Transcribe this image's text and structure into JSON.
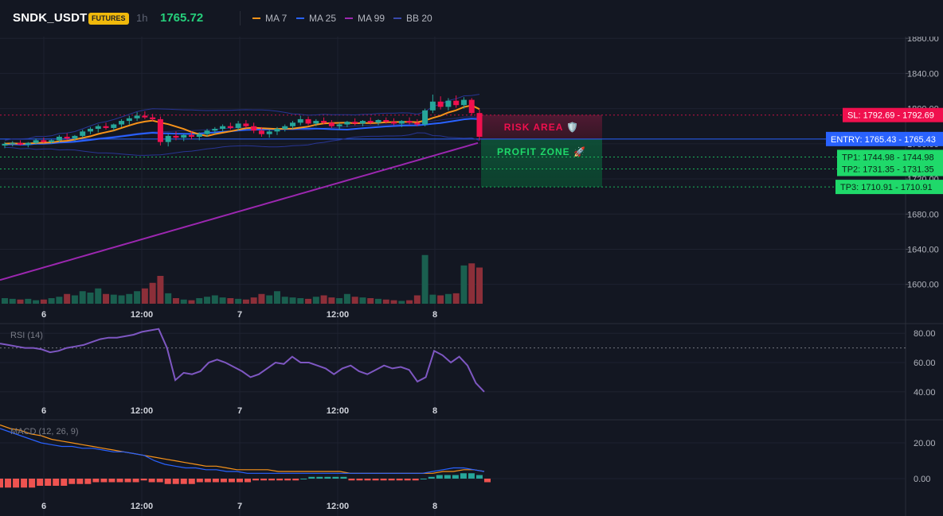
{
  "header": {
    "symbol": "SNDK_USDT",
    "badge": "FUTURES",
    "timeframe": "1h",
    "last_price": "1765.72",
    "legend": [
      {
        "label": "MA 7",
        "color": "#f7931a"
      },
      {
        "label": "MA 25",
        "color": "#2962ff"
      },
      {
        "label": "MA 99",
        "color": "#9c27b0"
      },
      {
        "label": "BB 20",
        "color": "#283593"
      }
    ]
  },
  "price_axis": {
    "ticks": [
      "1880.00",
      "1840.00",
      "1800.00",
      "1760.00",
      "1720.00",
      "1680.00",
      "1640.00",
      "1600.00"
    ]
  },
  "levels": {
    "sl": {
      "label": "SL: 1792.69",
      "value": "1792.69",
      "price": 1792.69,
      "color": "#f0104e"
    },
    "entry": {
      "label": "ENTRY: 1765.43",
      "value": "1765.43",
      "price": 1765.43,
      "color": "#2962ff"
    },
    "tp1": {
      "label": "TP1: 1744.98",
      "value": "1744.98",
      "price": 1744.98,
      "color": "#1fd96a"
    },
    "tp2": {
      "label": "TP2: 1731.35",
      "value": "1731.35",
      "price": 1731.35,
      "color": "#1fd96a"
    },
    "tp3": {
      "label": "TP3: 1710.91",
      "value": "1710.91",
      "price": 1710.91,
      "color": "#1fd96a"
    }
  },
  "zones": {
    "risk_label": "RISK AREA 🛡️",
    "profit_label": "PROFIT ZONE 🚀"
  },
  "time_axis": [
    "6",
    "12:00",
    "7",
    "12:00",
    "8"
  ],
  "rsi": {
    "title": "RSI (14)",
    "ticks": [
      "80.00",
      "60.00",
      "40.00"
    ],
    "overbought": 70
  },
  "macd": {
    "title": "MACD (12, 26, 9)",
    "ticks": [
      "20.00",
      "0.00"
    ]
  },
  "chart_data": {
    "type": "line",
    "title": "",
    "price_ylim": [
      1578,
      1882
    ],
    "candles": [
      [
        1758,
        1762,
        1755,
        1760
      ],
      [
        1760,
        1763,
        1757,
        1761
      ],
      [
        1761,
        1764,
        1758,
        1759
      ],
      [
        1759,
        1762,
        1756,
        1761
      ],
      [
        1761,
        1766,
        1759,
        1764
      ],
      [
        1764,
        1767,
        1761,
        1762
      ],
      [
        1762,
        1765,
        1760,
        1764
      ],
      [
        1764,
        1770,
        1762,
        1768
      ],
      [
        1768,
        1772,
        1764,
        1766
      ],
      [
        1766,
        1770,
        1763,
        1769
      ],
      [
        1769,
        1776,
        1767,
        1774
      ],
      [
        1774,
        1779,
        1771,
        1777
      ],
      [
        1777,
        1782,
        1773,
        1780
      ],
      [
        1780,
        1784,
        1776,
        1778
      ],
      [
        1778,
        1783,
        1775,
        1782
      ],
      [
        1782,
        1788,
        1779,
        1786
      ],
      [
        1786,
        1792,
        1782,
        1789
      ],
      [
        1789,
        1796,
        1786,
        1792
      ],
      [
        1792,
        1797,
        1788,
        1790
      ],
      [
        1790,
        1794,
        1786,
        1788
      ],
      [
        1788,
        1791,
        1758,
        1762
      ],
      [
        1762,
        1771,
        1757,
        1769
      ],
      [
        1769,
        1774,
        1764,
        1767
      ],
      [
        1767,
        1771,
        1763,
        1770
      ],
      [
        1770,
        1774,
        1765,
        1768
      ],
      [
        1768,
        1773,
        1764,
        1771
      ],
      [
        1771,
        1777,
        1768,
        1775
      ],
      [
        1775,
        1779,
        1771,
        1777
      ],
      [
        1777,
        1782,
        1774,
        1780
      ],
      [
        1780,
        1784,
        1776,
        1778
      ],
      [
        1778,
        1786,
        1775,
        1783
      ],
      [
        1783,
        1787,
        1778,
        1780
      ],
      [
        1780,
        1784,
        1772,
        1775
      ],
      [
        1775,
        1779,
        1768,
        1771
      ],
      [
        1771,
        1776,
        1767,
        1774
      ],
      [
        1774,
        1779,
        1770,
        1777
      ],
      [
        1777,
        1782,
        1774,
        1780
      ],
      [
        1780,
        1786,
        1777,
        1784
      ],
      [
        1784,
        1792,
        1781,
        1788
      ],
      [
        1788,
        1791,
        1781,
        1783
      ],
      [
        1783,
        1788,
        1780,
        1786
      ],
      [
        1786,
        1790,
        1782,
        1784
      ],
      [
        1784,
        1787,
        1778,
        1780
      ],
      [
        1780,
        1784,
        1776,
        1782
      ],
      [
        1782,
        1786,
        1779,
        1785
      ],
      [
        1785,
        1789,
        1781,
        1783
      ],
      [
        1783,
        1787,
        1780,
        1786
      ],
      [
        1786,
        1790,
        1782,
        1784
      ],
      [
        1784,
        1788,
        1781,
        1787
      ],
      [
        1787,
        1790,
        1783,
        1785
      ],
      [
        1785,
        1789,
        1781,
        1783
      ],
      [
        1783,
        1787,
        1779,
        1786
      ],
      [
        1786,
        1790,
        1782,
        1784
      ],
      [
        1784,
        1788,
        1780,
        1782
      ],
      [
        1782,
        1800,
        1780,
        1798
      ],
      [
        1798,
        1816,
        1795,
        1808
      ],
      [
        1808,
        1814,
        1799,
        1802
      ],
      [
        1802,
        1812,
        1798,
        1809
      ],
      [
        1809,
        1815,
        1801,
        1804
      ],
      [
        1804,
        1813,
        1800,
        1810
      ],
      [
        1810,
        1812,
        1792,
        1795
      ],
      [
        1795,
        1799,
        1764,
        1768
      ]
    ],
    "volume": [
      8,
      7,
      6,
      7,
      5,
      6,
      8,
      10,
      14,
      12,
      18,
      16,
      22,
      14,
      13,
      12,
      14,
      18,
      22,
      30,
      40,
      15,
      8,
      6,
      5,
      8,
      10,
      12,
      9,
      8,
      7,
      6,
      9,
      14,
      12,
      18,
      10,
      9,
      8,
      7,
      10,
      12,
      9,
      8,
      14,
      10,
      9,
      8,
      7,
      6,
      5,
      4,
      5,
      12,
      70,
      13,
      12,
      14,
      15,
      55,
      58,
      52
    ],
    "rsi_values": [
      73,
      72,
      71,
      70,
      70,
      69,
      67,
      68,
      70,
      71,
      72,
      74,
      76,
      77,
      77,
      78,
      79,
      81,
      82,
      83,
      70,
      48,
      53,
      52,
      54,
      60,
      62,
      60,
      57,
      54,
      50,
      52,
      56,
      60,
      59,
      64,
      60,
      60,
      58,
      56,
      52,
      56,
      58,
      54,
      52,
      55,
      58,
      56,
      57,
      55,
      47,
      50,
      68,
      65,
      60,
      64,
      58,
      46,
      40
    ],
    "macd_line": [
      28,
      26,
      24,
      22,
      20,
      19,
      18,
      18,
      17,
      17,
      16,
      15,
      15,
      14,
      13,
      10,
      8,
      7,
      6,
      6,
      5,
      5,
      4,
      4,
      3,
      3,
      3,
      3,
      3,
      3,
      3,
      3,
      3,
      3,
      3,
      3,
      3,
      3,
      3,
      3,
      3,
      3,
      4,
      5,
      6,
      6,
      5,
      4
    ],
    "signal_line": [
      30,
      28,
      27,
      25,
      24,
      22,
      21,
      20,
      19,
      18,
      17,
      16,
      15,
      14,
      13,
      12,
      11,
      10,
      9,
      8,
      7,
      7,
      6,
      5,
      5,
      5,
      5,
      4,
      4,
      4,
      4,
      4,
      4,
      4,
      3,
      3,
      3,
      3,
      3,
      3,
      3,
      3,
      3,
      4,
      4,
      5,
      5,
      4
    ],
    "macd_hist": [
      -5,
      -5,
      -5,
      -5,
      -5,
      -4,
      -4,
      -4,
      -4,
      -3,
      -3,
      -3,
      -2,
      -2,
      -2,
      -2,
      -2,
      -2,
      -1,
      -2,
      -2,
      -3,
      -3,
      -3,
      -3,
      -2,
      -2,
      -2,
      -2,
      -2,
      -2,
      -2,
      -1,
      -1,
      -1,
      -1,
      -1,
      -1,
      0,
      1,
      1,
      1,
      1,
      1,
      -1,
      -1,
      -1,
      -1,
      -1,
      -1,
      -1,
      -1,
      -1,
      0,
      1,
      2,
      2,
      2,
      3,
      3,
      2,
      -2
    ]
  }
}
